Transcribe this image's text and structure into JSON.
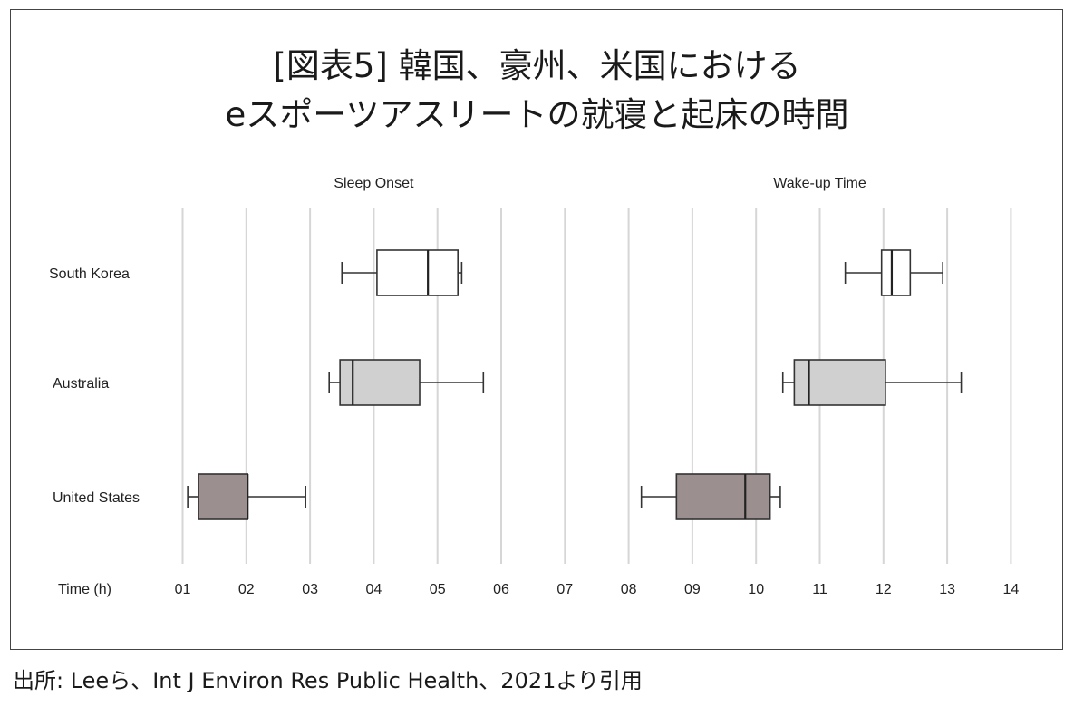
{
  "figure": {
    "title_line1": "[図表5] 韓国、豪州、米国における",
    "title_line2": "eスポーツアスリートの就寝と起床の時間",
    "source": "出所: Leeら、Int J Environ Res Public Health、2021より引用"
  },
  "chart_data": {
    "type": "boxplot",
    "axis_label": "Time (h)",
    "ticks": [
      "01",
      "02",
      "03",
      "04",
      "05",
      "06",
      "07",
      "08",
      "09",
      "10",
      "11",
      "12",
      "13",
      "14"
    ],
    "tick_values": [
      1,
      2,
      3,
      4,
      5,
      6,
      7,
      8,
      9,
      10,
      11,
      12,
      13,
      14
    ],
    "xlim": [
      0.6,
      14.4
    ],
    "grid": true,
    "categories": [
      "South Korea",
      "Australia",
      "United States"
    ],
    "panels": [
      {
        "name": "Sleep Onset",
        "range": [
          1,
          7
        ],
        "boxes": [
          {
            "category": "South Korea",
            "min": 3.5,
            "q1": 4.05,
            "median": 4.85,
            "q3": 5.32,
            "max": 5.38,
            "color": "#ffffff"
          },
          {
            "category": "Australia",
            "min": 3.3,
            "q1": 3.47,
            "median": 3.67,
            "q3": 4.72,
            "max": 5.72,
            "color": "#d0d0d0"
          },
          {
            "category": "United States",
            "min": 1.08,
            "q1": 1.25,
            "median": 2.02,
            "q3": 2.02,
            "max": 2.93,
            "color": "#9c8f8f"
          }
        ]
      },
      {
        "name": "Wake-up Time",
        "range": [
          8,
          14
        ],
        "boxes": [
          {
            "category": "South Korea",
            "min": 11.4,
            "q1": 11.97,
            "median": 12.13,
            "q3": 12.42,
            "max": 12.93,
            "color": "#ffffff"
          },
          {
            "category": "Australia",
            "min": 10.42,
            "q1": 10.6,
            "median": 10.83,
            "q3": 12.03,
            "max": 13.22,
            "color": "#d0d0d0"
          },
          {
            "category": "United States",
            "min": 8.2,
            "q1": 8.75,
            "median": 9.83,
            "q3": 10.22,
            "max": 10.38,
            "color": "#9c8f8f"
          }
        ]
      }
    ]
  }
}
